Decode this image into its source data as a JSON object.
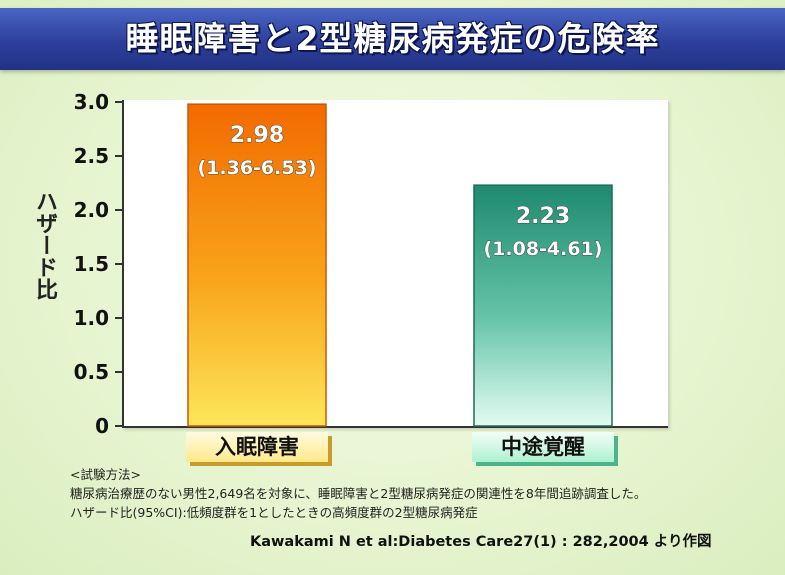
{
  "title": "睡眠障害と2型糖尿病発症の危険率",
  "notes": {
    "heading": "<試験方法>",
    "line1": "糖尿病治療歴のない男性2,649名を対象に、睡眠障害と2型糖尿病発症の関連性を8年間追跡調査した。",
    "line2": "ハザード比(95%CI):低頻度群を1としたときの高頻度群の2型糖尿病発症"
  },
  "citation": "Kawakami N et al:Diabetes Care27(1) : 282,2004 より作図",
  "colors": {
    "bar1": "#f28a00",
    "bar2": "#2a9c7e",
    "title_bg": "#2c3f9a"
  },
  "chart_data": {
    "type": "bar",
    "categories": [
      "入眠障害",
      "中途覚醒"
    ],
    "values": [
      2.98,
      2.23
    ],
    "data_labels": [
      "2.98",
      "2.23"
    ],
    "ci_labels": [
      "(1.36-6.53)",
      "(1.08-4.61)"
    ],
    "ylabel": "ハザード比",
    "ylim": [
      0,
      3.0
    ],
    "yticks": [
      0,
      0.5,
      1.0,
      1.5,
      2.0,
      2.5,
      3.0
    ],
    "ytick_labels": [
      "0",
      "0.5",
      "1.0",
      "1.5",
      "2.0",
      "2.5",
      "3.0"
    ],
    "grid": false
  }
}
